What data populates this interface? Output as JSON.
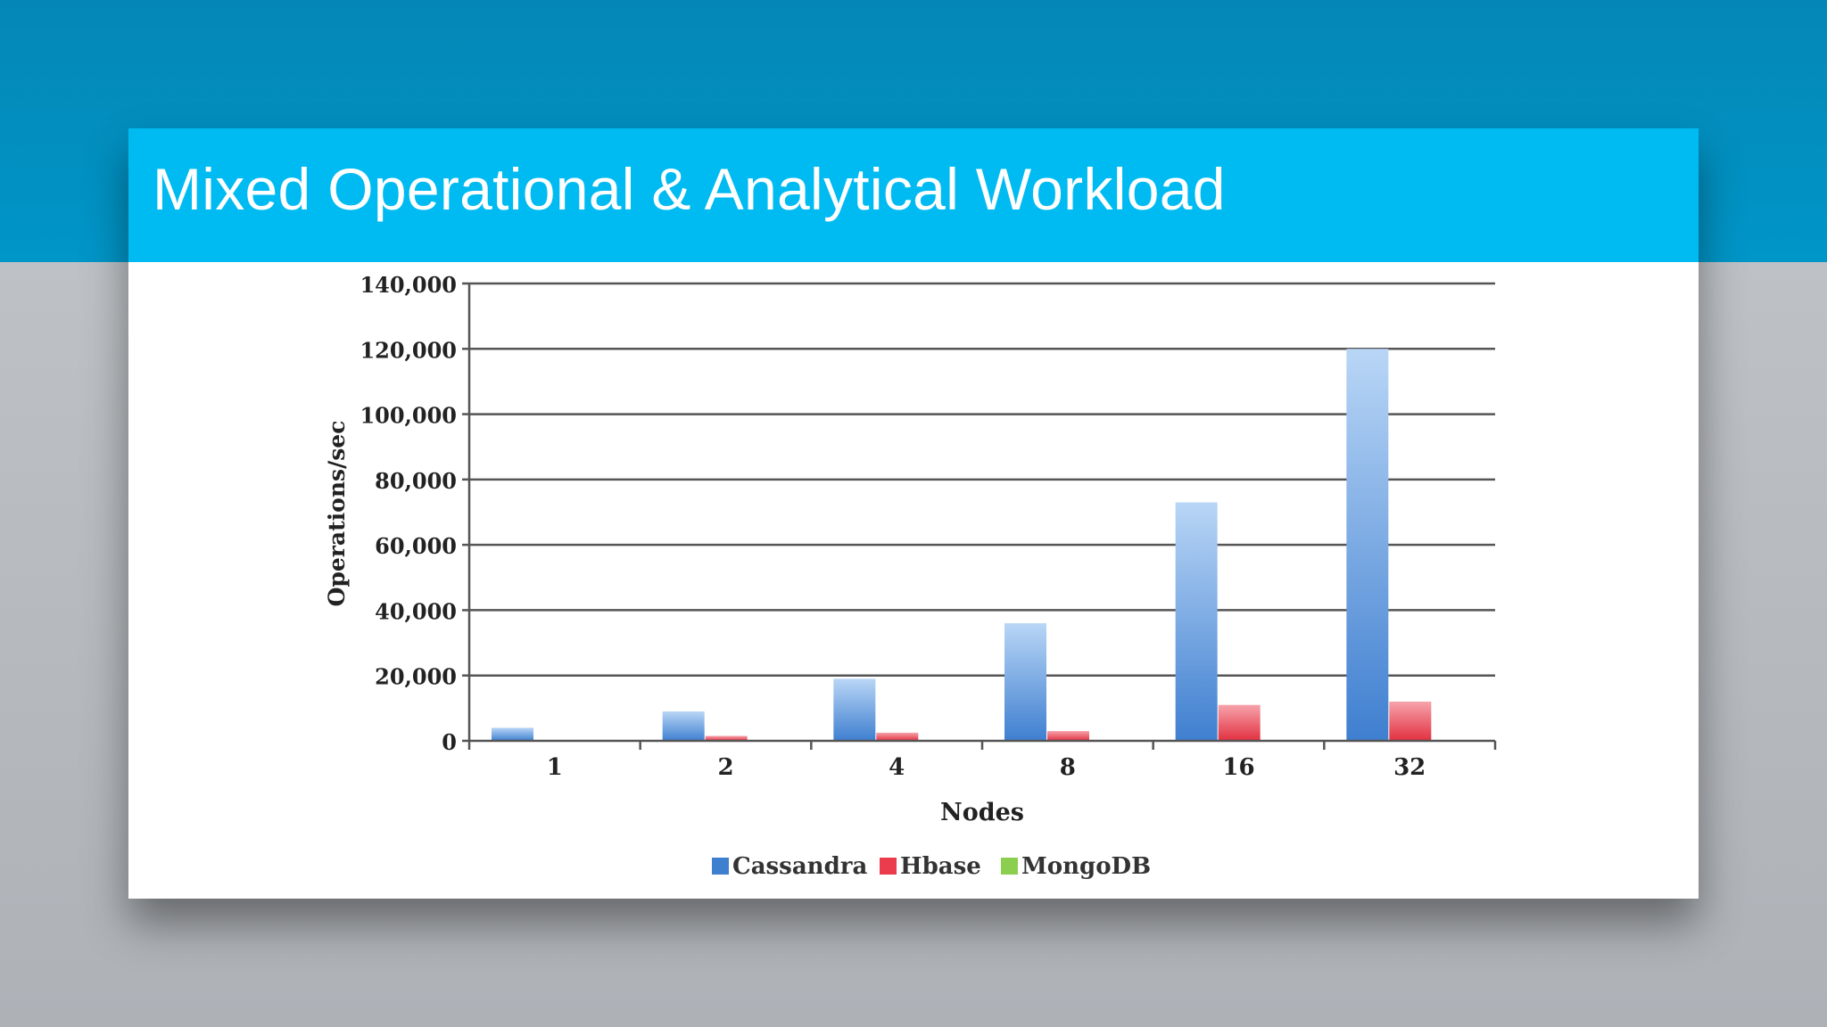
{
  "slide": {
    "title": "Mixed Operational & Analytical Workload"
  },
  "colors": {
    "top_band": "#0096c8",
    "title_bar": "#00bbf1",
    "background": "#b8bcc0",
    "cassandra": "#3f7fd0",
    "hbase": "#ea3c4c",
    "mongodb": "#8ccf50"
  },
  "chart_data": {
    "type": "bar",
    "title": "",
    "xlabel": "Nodes",
    "ylabel": "Operations/sec",
    "categories": [
      "1",
      "2",
      "4",
      "8",
      "16",
      "32"
    ],
    "ylim": [
      0,
      140000
    ],
    "yticks": [
      0,
      20000,
      40000,
      60000,
      80000,
      100000,
      120000,
      140000
    ],
    "ytick_labels": [
      "0",
      "20,000",
      "40,000",
      "60,000",
      "80,000",
      "100,000",
      "120,000",
      "140,000"
    ],
    "grid": true,
    "legend_position": "bottom",
    "series": [
      {
        "name": "Cassandra",
        "color": "#3f7fd0",
        "values": [
          4000,
          9000,
          19000,
          36000,
          73000,
          120000
        ]
      },
      {
        "name": "Hbase",
        "color": "#ea3c4c",
        "values": [
          200,
          1500,
          2500,
          3000,
          11000,
          12000
        ]
      },
      {
        "name": "MongoDB",
        "color": "#8ccf50",
        "values": [
          300,
          100,
          100,
          100,
          200,
          200
        ]
      }
    ]
  }
}
